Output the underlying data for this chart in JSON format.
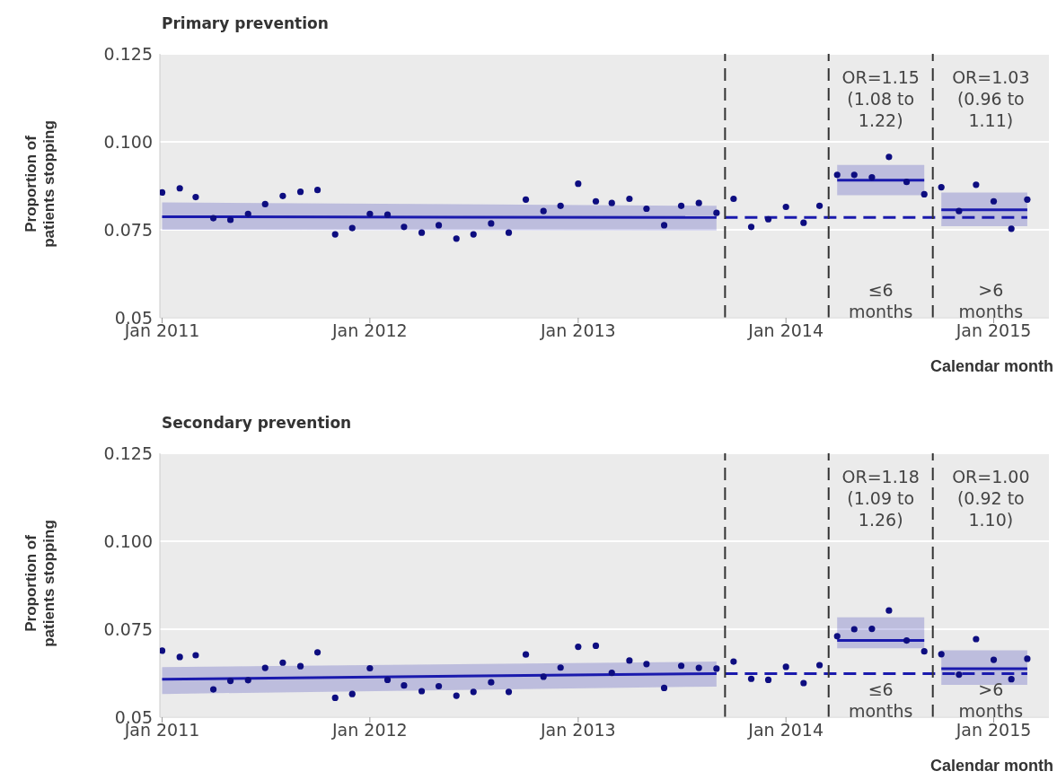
{
  "chart_data": [
    {
      "type": "scatter",
      "title": "Primary prevention",
      "xlabel": "Calendar month",
      "ylabel": "Proportion of patients stopping",
      "grid": "y",
      "x": [
        "2011-01",
        "2011-02",
        "2011-03",
        "2011-04",
        "2011-05",
        "2011-06",
        "2011-07",
        "2011-08",
        "2011-09",
        "2011-10",
        "2011-11",
        "2011-12",
        "2012-01",
        "2012-02",
        "2012-03",
        "2012-04",
        "2012-05",
        "2012-06",
        "2012-07",
        "2012-08",
        "2012-09",
        "2012-10",
        "2012-11",
        "2012-12",
        "2013-01",
        "2013-02",
        "2013-03",
        "2013-04",
        "2013-05",
        "2013-06",
        "2013-07",
        "2013-08",
        "2013-09",
        "2013-10",
        "2013-11",
        "2013-12",
        "2014-01",
        "2014-02",
        "2014-03",
        "2014-04",
        "2014-05",
        "2014-06",
        "2014-07",
        "2014-08",
        "2014-09",
        "2014-10",
        "2014-11",
        "2014-12",
        "2015-01",
        "2015-02",
        "2015-03"
      ],
      "xlim": [
        "2010-12-28",
        "2015-04-08"
      ],
      "xticks": [
        {
          "value": "2011-01",
          "label": "Jan 2011"
        },
        {
          "value": "2012-01",
          "label": "Jan 2012"
        },
        {
          "value": "2013-01",
          "label": "Jan 2013"
        },
        {
          "value": "2014-01",
          "label": "Jan 2014"
        },
        {
          "value": "2015-01",
          "label": "Jan 2015"
        }
      ],
      "ylim": [
        0.05,
        0.125
      ],
      "yticks": [
        0.05,
        0.075,
        {
          "value": 0.1,
          "label": "0.100"
        },
        0.125
      ],
      "series": [
        {
          "marker": "circle",
          "color": "#0d0d80",
          "values": [
            0.0856,
            0.0868,
            0.0843,
            0.0783,
            0.0778,
            0.0795,
            0.0823,
            0.0846,
            0.0858,
            0.0863,
            0.0737,
            0.0755,
            0.0795,
            0.0793,
            0.0758,
            0.0742,
            0.0763,
            0.0725,
            0.0737,
            0.0768,
            0.0742,
            0.0836,
            0.0803,
            0.0818,
            0.0881,
            0.0831,
            0.0826,
            0.0838,
            0.081,
            0.0763,
            0.0818,
            0.0826,
            0.0798,
            0.0838,
            0.0758,
            0.078,
            0.0815,
            0.077,
            0.0818,
            0.0906,
            0.0906,
            0.0899,
            0.0957,
            0.0886,
            0.0851,
            0.0871,
            0.0803,
            0.0878,
            0.0831,
            0.0753,
            0.0836
          ]
        },
        {
          "type": "line",
          "marker": "none",
          "line_style": "solid",
          "color": "#1a1aad",
          "x": [
            "2011-01",
            "2013-09"
          ],
          "values": [
            0.0787,
            0.0785
          ],
          "lower": [
            0.075,
            0.0748
          ],
          "upper": [
            0.0828,
            0.0818
          ]
        },
        {
          "type": "line",
          "marker": "none",
          "line_style": "solid",
          "color": "#1a1aad",
          "x": [
            "2014-04",
            "2014-09"
          ],
          "values": [
            0.0891,
            0.0891
          ],
          "lower": [
            0.0848,
            0.0848
          ],
          "upper": [
            0.0934,
            0.0934
          ]
        },
        {
          "type": "line",
          "marker": "none",
          "line_style": "solid",
          "color": "#1a1aad",
          "x": [
            "2014-10",
            "2015-03"
          ],
          "values": [
            0.0807,
            0.0807
          ],
          "lower": [
            0.076,
            0.076
          ],
          "upper": [
            0.0856,
            0.0856
          ]
        },
        {
          "type": "line",
          "marker": "none",
          "line_style": "dashed",
          "color": "#1a1aad",
          "x": [
            "2013-09-16",
            "2015-03-01"
          ],
          "values": [
            0.0785,
            0.0785
          ]
        }
      ],
      "ref_lines": [
        {
          "axis": "x",
          "value": "2013-09-16",
          "color": "#333333",
          "line_style": "dashed"
        },
        {
          "axis": "x",
          "value": "2014-03-17",
          "color": "#333333",
          "line_style": "dashed"
        },
        {
          "axis": "x",
          "value": "2014-09-16",
          "color": "#333333",
          "line_style": "dashed"
        }
      ],
      "annotations": [
        "OR=1.15\n(1.08 to\n1.22)",
        "OR=1.03\n(0.96 to\n1.11)",
        "≤6\nmonths",
        ">6\nmonths"
      ]
    },
    {
      "type": "scatter",
      "title": "Secondary prevention",
      "xlabel": "Calendar month",
      "ylabel": "Proportion of patients stopping",
      "grid": "y",
      "x": [
        "2011-01",
        "2011-02",
        "2011-03",
        "2011-04",
        "2011-05",
        "2011-06",
        "2011-07",
        "2011-08",
        "2011-09",
        "2011-10",
        "2011-11",
        "2011-12",
        "2012-01",
        "2012-02",
        "2012-03",
        "2012-04",
        "2012-05",
        "2012-06",
        "2012-07",
        "2012-08",
        "2012-09",
        "2012-10",
        "2012-11",
        "2012-12",
        "2013-01",
        "2013-02",
        "2013-03",
        "2013-04",
        "2013-05",
        "2013-06",
        "2013-07",
        "2013-08",
        "2013-09",
        "2013-10",
        "2013-11",
        "2013-12",
        "2014-01",
        "2014-02",
        "2014-03",
        "2014-04",
        "2014-05",
        "2014-06",
        "2014-07",
        "2014-08",
        "2014-09",
        "2014-10",
        "2014-11",
        "2014-12",
        "2015-01",
        "2015-02",
        "2015-03"
      ],
      "xlim": [
        "2010-12-28",
        "2015-04-08"
      ],
      "xticks": [
        {
          "value": "2011-01",
          "label": "Jan 2011"
        },
        {
          "value": "2012-01",
          "label": "Jan 2012"
        },
        {
          "value": "2013-01",
          "label": "Jan 2013"
        },
        {
          "value": "2014-01",
          "label": "Jan 2014"
        },
        {
          "value": "2015-01",
          "label": "Jan 2015"
        }
      ],
      "ylim": [
        0.05,
        0.125
      ],
      "yticks": [
        0.05,
        0.075,
        {
          "value": 0.1,
          "label": "0.100"
        },
        0.125
      ],
      "series": [
        {
          "marker": "circle",
          "color": "#0d0d80",
          "values": [
            0.0689,
            0.0671,
            0.0676,
            0.0579,
            0.0603,
            0.0605,
            0.064,
            0.0655,
            0.0645,
            0.0684,
            0.0555,
            0.0566,
            0.0639,
            0.0606,
            0.059,
            0.0574,
            0.0588,
            0.0561,
            0.0572,
            0.0599,
            0.0572,
            0.0678,
            0.0615,
            0.0641,
            0.07,
            0.0703,
            0.0626,
            0.0661,
            0.0651,
            0.0583,
            0.0646,
            0.064,
            0.0638,
            0.0658,
            0.0609,
            0.0606,
            0.0643,
            0.0597,
            0.0648,
            0.073,
            0.075,
            0.0751,
            0.0803,
            0.0718,
            0.0687,
            0.0679,
            0.0621,
            0.0722,
            0.0663,
            0.0608,
            0.0666
          ]
        },
        {
          "type": "line",
          "marker": "none",
          "line_style": "solid",
          "color": "#1a1aad",
          "x": [
            "2011-01",
            "2013-09"
          ],
          "values": [
            0.0608,
            0.0624
          ],
          "lower": [
            0.0566,
            0.0587
          ],
          "upper": [
            0.0642,
            0.0658
          ]
        },
        {
          "type": "line",
          "marker": "none",
          "line_style": "solid",
          "color": "#1a1aad",
          "x": [
            "2014-04",
            "2014-09"
          ],
          "values": [
            0.0718,
            0.0718
          ],
          "lower": [
            0.0696,
            0.0696
          ],
          "upper": [
            0.0784,
            0.0784
          ]
        },
        {
          "type": "line",
          "marker": "none",
          "line_style": "solid",
          "color": "#1a1aad",
          "x": [
            "2014-10",
            "2015-03"
          ],
          "values": [
            0.0638,
            0.0638
          ],
          "lower": [
            0.0592,
            0.0592
          ],
          "upper": [
            0.069,
            0.069
          ]
        },
        {
          "type": "line",
          "marker": "none",
          "line_style": "dashed",
          "color": "#1a1aad",
          "x": [
            "2013-09-16",
            "2015-03-01"
          ],
          "values": [
            0.0624,
            0.0624
          ]
        }
      ],
      "ref_lines": [
        {
          "axis": "x",
          "value": "2013-09-16",
          "color": "#333333",
          "line_style": "dashed"
        },
        {
          "axis": "x",
          "value": "2014-03-17",
          "color": "#333333",
          "line_style": "dashed"
        },
        {
          "axis": "x",
          "value": "2014-09-16",
          "color": "#333333",
          "line_style": "dashed"
        }
      ],
      "annotations": [
        "OR=1.18\n(1.09 to\n1.26)",
        "OR=1.00\n(0.92 to\n1.10)",
        "≤6\nmonths",
        ">6\nmonths"
      ]
    }
  ]
}
